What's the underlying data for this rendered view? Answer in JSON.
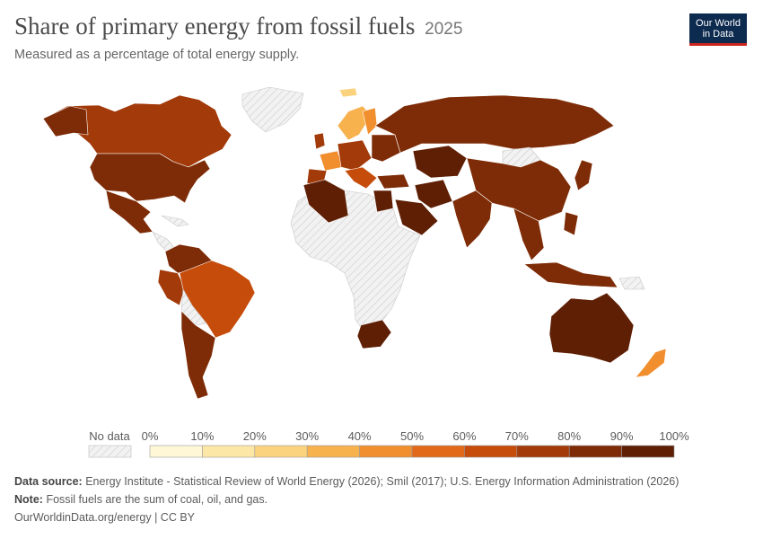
{
  "header": {
    "title": "Share of primary energy from fossil fuels",
    "year": "2025",
    "subtitle": "Measured as a percentage of total energy supply."
  },
  "logo": {
    "line1": "Our World",
    "line2": "in Data"
  },
  "legend": {
    "no_data_label": "No data",
    "ticks": [
      "0%",
      "10%",
      "20%",
      "30%",
      "40%",
      "50%",
      "60%",
      "70%",
      "80%",
      "90%",
      "100%"
    ],
    "bin_colors": [
      "#fff7d6",
      "#fde7a6",
      "#fbd37e",
      "#f7b24e",
      "#f18e2e",
      "#e2691a",
      "#c64c0b",
      "#a33a0a",
      "#7e2c07",
      "#5e1f05"
    ],
    "no_data_color": "#e6e6e6"
  },
  "footer": {
    "source_label": "Data source:",
    "source_text": "Energy Institute - Statistical Review of World Energy (2026); Smil (2017); U.S. Energy Information Administration (2026)",
    "note_label": "Note:",
    "note_text": "Fossil fuels are the sum of coal, oil, and gas.",
    "url": "OurWorldinData.org/energy | CC BY"
  }
}
